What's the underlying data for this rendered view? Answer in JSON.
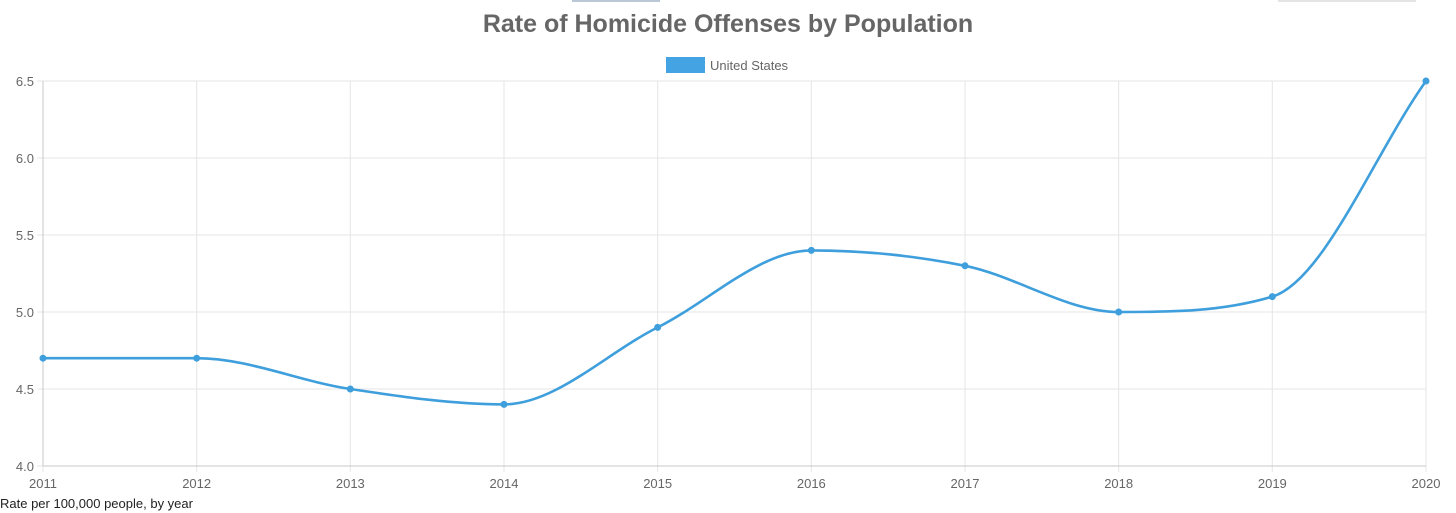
{
  "chart_data": {
    "type": "line",
    "title": "Rate of Homicide Offenses by Population",
    "categories": [
      "2011",
      "2012",
      "2013",
      "2014",
      "2015",
      "2016",
      "2017",
      "2018",
      "2019",
      "2020"
    ],
    "series": [
      {
        "name": "United States",
        "values": [
          4.7,
          4.7,
          4.5,
          4.4,
          4.9,
          5.4,
          5.3,
          5.0,
          5.1,
          6.5
        ]
      }
    ],
    "ylim": [
      4.0,
      6.5
    ],
    "yticks": [
      "4.0",
      "4.5",
      "5.0",
      "5.5",
      "6.0",
      "6.5"
    ],
    "grid": true,
    "legend_position": "top-center",
    "xlabel": "",
    "ylabel": "",
    "caption": "Rate per 100,000 people, by year",
    "colors": {
      "series": "#3e9fdc",
      "legend_box": "#43a3e3",
      "grid": "#e5e5e5",
      "text": "#666666"
    }
  }
}
